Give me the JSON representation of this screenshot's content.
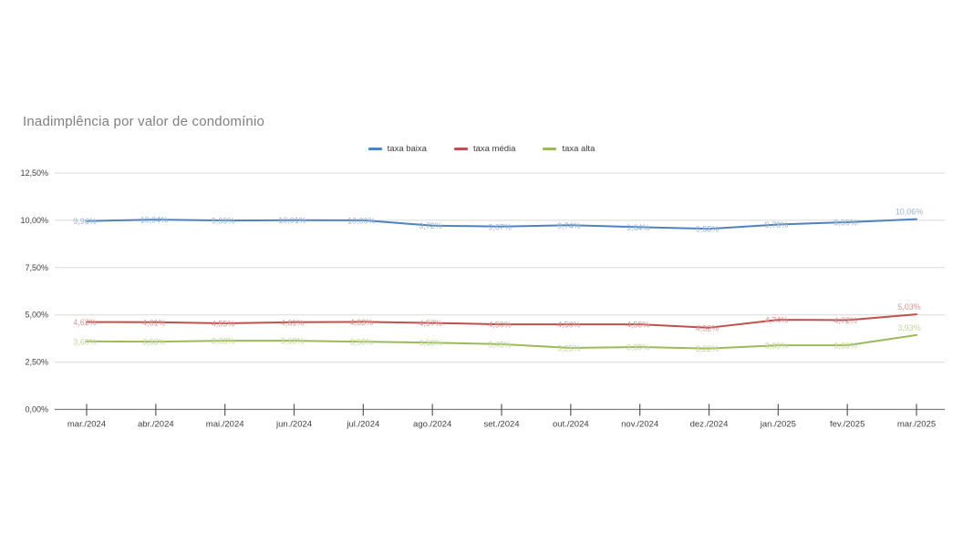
{
  "chart": {
    "title": "Inadimplência por valor de condomínio"
  },
  "chart_data": {
    "type": "line",
    "title": "Inadimplência por valor de condomínio",
    "xlabel": "",
    "ylabel": "",
    "ylim": [
      0,
      12.5
    ],
    "ytick_step": 2.5,
    "ytick_labels": [
      "0,00%",
      "2,50%",
      "5,00%",
      "7,50%",
      "10,00%",
      "12,50%"
    ],
    "grid": true,
    "legend_position": "top-center",
    "data_labels": true,
    "categories": [
      "mar./2024",
      "abr./2024",
      "mai./2024",
      "jun./2024",
      "jul./2024",
      "ago./2024",
      "set./2024",
      "out./2024",
      "nov./2024",
      "dez./2024",
      "jan./2025",
      "fev./2025",
      "mar./2025"
    ],
    "series": [
      {
        "name": "taxa baixa",
        "color": "#4F81BD",
        "label_color": "#95b3d7",
        "values": [
          9.96,
          10.04,
          9.99,
          10.01,
          10.0,
          9.72,
          9.67,
          9.74,
          9.64,
          9.55,
          9.78,
          9.9,
          10.06
        ],
        "labels": [
          "9,96%",
          "10,04%",
          "9,99%",
          "10,01%",
          "10,00%",
          "9,72%",
          "9,67%",
          "9,74%",
          "9,64%",
          "9,55%",
          "9,78%",
          "9,90%",
          "10,06%"
        ]
      },
      {
        "name": "taxa média",
        "color": "#C0504D",
        "label_color": "#d99694",
        "values": [
          4.62,
          4.61,
          4.55,
          4.61,
          4.63,
          4.57,
          4.5,
          4.5,
          4.5,
          4.32,
          4.74,
          4.72,
          5.03
        ],
        "labels": [
          "4,62%",
          "4,61%",
          "4,55%",
          "4,61%",
          "4,63%",
          "4,57%",
          "4,50%",
          "4,50%",
          "4,50%",
          "4,32%",
          "4,74%",
          "4,72%",
          "5,03%"
        ]
      },
      {
        "name": "taxa alta",
        "color": "#9BBB59",
        "label_color": "#c2d69b",
        "values": [
          3.6,
          3.58,
          3.63,
          3.63,
          3.58,
          3.53,
          3.45,
          3.25,
          3.3,
          3.22,
          3.39,
          3.39,
          3.93
        ],
        "labels": [
          "3,60%",
          "3,58%",
          "3,63%",
          "3,63%",
          "3,58%",
          "3,53%",
          "3,45%",
          "3,25%",
          "3,30%",
          "3,22%",
          "3,39%",
          "3,39%",
          "3,93%"
        ]
      }
    ],
    "axis_colors": {
      "gridline": "#d9d9d9",
      "axis_line": "#7f7f7f",
      "tick": "#595959",
      "tick_label": "#404040"
    }
  }
}
